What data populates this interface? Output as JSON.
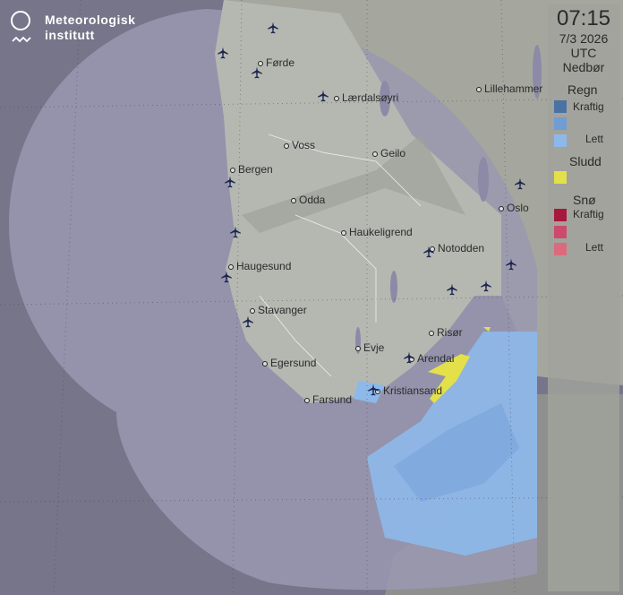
{
  "logo": {
    "name_line1": "Meteorologisk",
    "name_line2": "institutt"
  },
  "legend": {
    "time": "07:15",
    "date": "7/3 2026",
    "timezone": "UTC",
    "title": "Nedbør",
    "rain": {
      "label": "Regn",
      "heavy": "Kraftig",
      "light": "Lett",
      "colors": [
        "#4a72a4",
        "#6f9dd4",
        "#8db9ea"
      ]
    },
    "sleet": {
      "label": "Sludd",
      "colors": [
        "#e4e04a"
      ]
    },
    "snow": {
      "label": "Snø",
      "heavy": "Kraftig",
      "light": "Lett",
      "colors": [
        "#a8183c",
        "#cc4a6c",
        "#dc6a7c"
      ]
    }
  },
  "cities": [
    "Førde",
    "Lærdalsøyri",
    "Voss",
    "Geilo",
    "Bergen",
    "Odda",
    "Haukeligrend",
    "Notodden",
    "Haugesund",
    "Stavanger",
    "Egersund",
    "Evje",
    "Risør",
    "Arendal",
    "Kristiansand",
    "Farsund",
    "Lillehammer",
    "Oslo"
  ],
  "icons": {
    "airport": "airplane-icon",
    "logo": "met-logo-icon"
  }
}
